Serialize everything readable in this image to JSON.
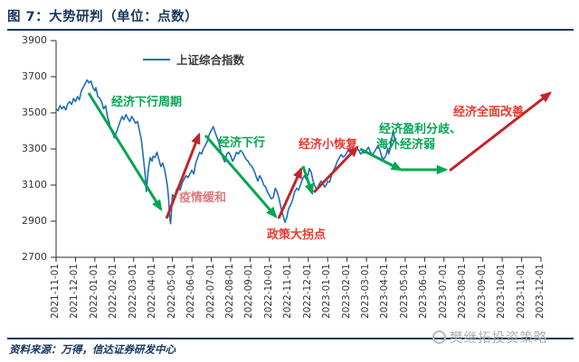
{
  "header": {
    "title": "图 7：大势研判（单位：点数）"
  },
  "legend": {
    "label": "上证综合指数"
  },
  "footer": {
    "source": "资料来源：万得，信达证券研发中心"
  },
  "watermark": {
    "text": "樊继拓投资策略",
    "logo_icon": "circle-logo-icon"
  },
  "colors": {
    "navy": "#17375e",
    "line_blue": "#1f6eb4",
    "arrow_green": "#00a651",
    "arrow_red": "#c4232b",
    "text_red": "#e8392e",
    "text_soft_red": "#dd7b80",
    "text_green": "#00a651",
    "watermark_gray": "#aab0b8"
  },
  "chart_data": {
    "type": "line",
    "title": "图 7：大势研判（单位：点数）",
    "xlabel": "",
    "ylabel": "",
    "ylim": [
      2700,
      3900
    ],
    "y_ticks": [
      3900,
      3700,
      3500,
      3300,
      3100,
      2900,
      2700
    ],
    "grid": false,
    "legend_position": "top-center",
    "x_tick_labels": [
      "2021-11-01",
      "2021-12-01",
      "2022-01-01",
      "2022-02-01",
      "2022-03-01",
      "2022-04-01",
      "2022-05-01",
      "2022-06-01",
      "2022-07-01",
      "2022-08-01",
      "2022-09-01",
      "2022-10-01",
      "2022-11-01",
      "2022-12-01",
      "2023-01-01",
      "2023-02-01",
      "2023-03-01",
      "2023-04-01",
      "2023-05-01",
      "2023-06-01",
      "2023-07-01",
      "2023-08-01",
      "2023-09-01",
      "2023-10-01",
      "2023-11-01",
      "2023-12-01"
    ],
    "series": [
      {
        "name": "上证综合指数",
        "x_unit": "months_from_2021-11-01",
        "points": [
          [
            0,
            3522
          ],
          [
            0.1,
            3512
          ],
          [
            0.2,
            3540
          ],
          [
            0.3,
            3522
          ],
          [
            0.4,
            3536
          ],
          [
            0.5,
            3516
          ],
          [
            0.6,
            3550
          ],
          [
            0.7,
            3562
          ],
          [
            0.8,
            3546
          ],
          [
            0.9,
            3580
          ],
          [
            1.0,
            3562
          ],
          [
            1.1,
            3590
          ],
          [
            1.2,
            3572
          ],
          [
            1.3,
            3620
          ],
          [
            1.4,
            3642
          ],
          [
            1.5,
            3662
          ],
          [
            1.6,
            3682
          ],
          [
            1.7,
            3666
          ],
          [
            1.8,
            3676
          ],
          [
            1.9,
            3640
          ],
          [
            2.0,
            3622
          ],
          [
            2.05,
            3640
          ],
          [
            2.15,
            3590
          ],
          [
            2.25,
            3582
          ],
          [
            2.35,
            3560
          ],
          [
            2.45,
            3522
          ],
          [
            2.55,
            3540
          ],
          [
            2.65,
            3480
          ],
          [
            2.75,
            3440
          ],
          [
            2.85,
            3400
          ],
          [
            2.95,
            3380
          ],
          [
            3.0,
            3362
          ],
          [
            3.1,
            3390
          ],
          [
            3.2,
            3420
          ],
          [
            3.3,
            3452
          ],
          [
            3.4,
            3480
          ],
          [
            3.5,
            3462
          ],
          [
            3.6,
            3490
          ],
          [
            3.7,
            3470
          ],
          [
            3.8,
            3452
          ],
          [
            3.9,
            3480
          ],
          [
            4.0,
            3462
          ],
          [
            4.1,
            3442
          ],
          [
            4.2,
            3452
          ],
          [
            4.3,
            3400
          ],
          [
            4.4,
            3350
          ],
          [
            4.5,
            3250
          ],
          [
            4.6,
            3150
          ],
          [
            4.65,
            3064
          ],
          [
            4.75,
            3180
          ],
          [
            4.85,
            3252
          ],
          [
            4.95,
            3232
          ],
          [
            5.0,
            3260
          ],
          [
            5.1,
            3252
          ],
          [
            5.2,
            3282
          ],
          [
            5.3,
            3242
          ],
          [
            5.4,
            3202
          ],
          [
            5.5,
            3222
          ],
          [
            5.6,
            3182
          ],
          [
            5.7,
            3122
          ],
          [
            5.75,
            3082
          ],
          [
            5.8,
            3022
          ],
          [
            5.85,
            2930
          ],
          [
            5.9,
            2886
          ],
          [
            5.95,
            2958
          ],
          [
            6.0,
            3047
          ],
          [
            6.1,
            3032
          ],
          [
            6.2,
            3072
          ],
          [
            6.3,
            3092
          ],
          [
            6.4,
            3072
          ],
          [
            6.5,
            3112
          ],
          [
            6.6,
            3132
          ],
          [
            6.7,
            3152
          ],
          [
            6.8,
            3142
          ],
          [
            6.9,
            3162
          ],
          [
            7.0,
            3182
          ],
          [
            7.1,
            3162
          ],
          [
            7.2,
            3222
          ],
          [
            7.3,
            3252
          ],
          [
            7.4,
            3282
          ],
          [
            7.5,
            3272
          ],
          [
            7.6,
            3302
          ],
          [
            7.7,
            3322
          ],
          [
            7.8,
            3342
          ],
          [
            7.9,
            3382
          ],
          [
            8.0,
            3402
          ],
          [
            8.1,
            3424
          ],
          [
            8.2,
            3392
          ],
          [
            8.3,
            3362
          ],
          [
            8.4,
            3332
          ],
          [
            8.5,
            3282
          ],
          [
            8.6,
            3252
          ],
          [
            8.7,
            3228
          ],
          [
            8.8,
            3272
          ],
          [
            8.9,
            3282
          ],
          [
            9.0,
            3262
          ],
          [
            9.1,
            3232
          ],
          [
            9.2,
            3252
          ],
          [
            9.3,
            3282
          ],
          [
            9.4,
            3272
          ],
          [
            9.5,
            3292
          ],
          [
            9.6,
            3282
          ],
          [
            9.7,
            3262
          ],
          [
            9.8,
            3242
          ],
          [
            9.9,
            3232
          ],
          [
            10.0,
            3212
          ],
          [
            10.1,
            3202
          ],
          [
            10.2,
            3182
          ],
          [
            10.3,
            3152
          ],
          [
            10.4,
            3122
          ],
          [
            10.5,
            3152
          ],
          [
            10.6,
            3132
          ],
          [
            10.7,
            3102
          ],
          [
            10.8,
            3088
          ],
          [
            10.9,
            3062
          ],
          [
            11.0,
            3042
          ],
          [
            11.1,
            3024
          ],
          [
            11.2,
            3032
          ],
          [
            11.3,
            3082
          ],
          [
            11.4,
            3062
          ],
          [
            11.5,
            3022
          ],
          [
            11.6,
            2972
          ],
          [
            11.7,
            2932
          ],
          [
            11.8,
            2893
          ],
          [
            11.9,
            2922
          ],
          [
            11.95,
            2952
          ],
          [
            12.0,
            2972
          ],
          [
            12.1,
            2992
          ],
          [
            12.2,
            3022
          ],
          [
            12.3,
            3062
          ],
          [
            12.4,
            3082
          ],
          [
            12.5,
            3072
          ],
          [
            12.6,
            3102
          ],
          [
            12.7,
            3132
          ],
          [
            12.8,
            3152
          ],
          [
            12.9,
            3132
          ],
          [
            13.0,
            3162
          ],
          [
            13.05,
            3192
          ],
          [
            13.15,
            3172
          ],
          [
            13.25,
            3122
          ],
          [
            13.35,
            3092
          ],
          [
            13.45,
            3073
          ],
          [
            13.55,
            3102
          ],
          [
            13.65,
            3122
          ],
          [
            13.75,
            3112
          ],
          [
            13.85,
            3089
          ],
          [
            13.95,
            3105
          ],
          [
            14.0,
            3120
          ],
          [
            14.1,
            3116
          ],
          [
            14.2,
            3152
          ],
          [
            14.3,
            3182
          ],
          [
            14.4,
            3202
          ],
          [
            14.5,
            3232
          ],
          [
            14.6,
            3252
          ],
          [
            14.7,
            3269
          ],
          [
            14.8,
            3255
          ],
          [
            14.9,
            3262
          ],
          [
            15.0,
            3282
          ],
          [
            15.1,
            3302
          ],
          [
            15.2,
            3292
          ],
          [
            15.3,
            3272
          ],
          [
            15.4,
            3282
          ],
          [
            15.5,
            3305
          ],
          [
            15.6,
            3292
          ],
          [
            15.7,
            3272
          ],
          [
            15.8,
            3282
          ],
          [
            15.9,
            3279
          ],
          [
            16.0,
            3292
          ],
          [
            16.1,
            3310
          ],
          [
            16.2,
            3285
          ],
          [
            16.3,
            3265
          ],
          [
            16.4,
            3282
          ],
          [
            16.5,
            3302
          ],
          [
            16.6,
            3320
          ],
          [
            16.7,
            3292
          ],
          [
            16.8,
            3252
          ],
          [
            16.9,
            3245
          ],
          [
            17.0,
            3262
          ],
          [
            17.05,
            3282
          ],
          [
            17.1,
            3302
          ],
          [
            17.15,
            3272
          ],
          [
            17.2,
            3292
          ],
          [
            17.25,
            3322
          ],
          [
            17.3,
            3352
          ],
          [
            17.35,
            3385
          ],
          [
            17.4,
            3393
          ],
          [
            17.45,
            3352
          ],
          [
            17.5,
            3338
          ]
        ]
      }
    ],
    "trend_arrows": [
      {
        "color": "green",
        "from": [
          1.68,
          3610
        ],
        "to": [
          5.41,
          2965
        ]
      },
      {
        "color": "red",
        "from": [
          5.69,
          2915
        ],
        "to": [
          7.37,
          3380
        ]
      },
      {
        "color": "green",
        "from": [
          7.7,
          3375
        ],
        "to": [
          11.33,
          2925
        ]
      },
      {
        "color": "red",
        "from": [
          11.47,
          2915
        ],
        "to": [
          12.64,
          3190
        ]
      },
      {
        "color": "green",
        "from": [
          12.73,
          3205
        ],
        "to": [
          13.2,
          3055
        ]
      },
      {
        "color": "red",
        "from": [
          13.29,
          3060
        ],
        "to": [
          15.53,
          3310
        ]
      },
      {
        "color": "green",
        "from": [
          15.67,
          3300
        ],
        "to": [
          17.77,
          3185
        ]
      },
      {
        "color": "green",
        "from": [
          17.77,
          3185
        ],
        "to": [
          20.1,
          3185
        ]
      },
      {
        "color": "red",
        "from": [
          20.29,
          3180
        ],
        "to": [
          25.47,
          3610
        ]
      }
    ],
    "annotations": [
      {
        "text": "经济下行周期",
        "color": "#00a651"
      },
      {
        "text": "疫情缓和",
        "color": "#dd7b80"
      },
      {
        "text": "经济下行",
        "color": "#00a651"
      },
      {
        "text": "政策大拐点",
        "color": "#e8392e"
      },
      {
        "text": "经济小恢复",
        "color": "#e8392e"
      },
      {
        "text": "经济盈利分歧、",
        "color": "#00a651"
      },
      {
        "text": "海外经济弱",
        "color": "#00a651"
      },
      {
        "text": "经济全面改善",
        "color": "#e8392e"
      }
    ]
  }
}
